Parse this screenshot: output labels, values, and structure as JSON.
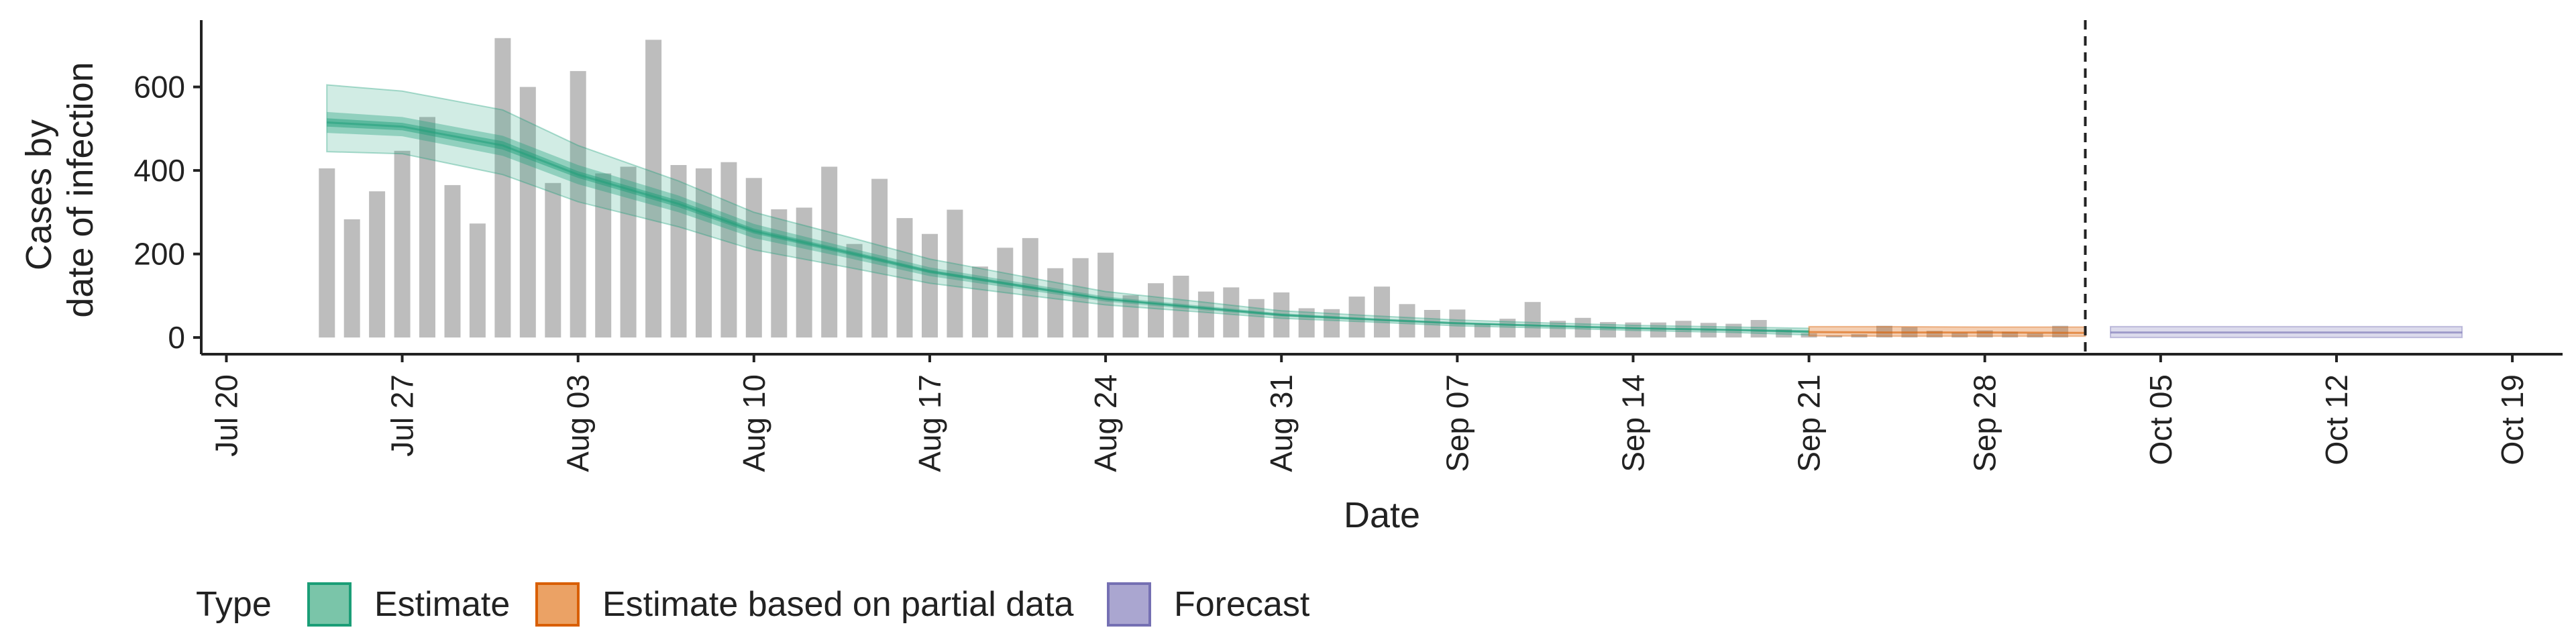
{
  "chart_data": {
    "type": "bar",
    "xlabel": "Date",
    "ylabel": [
      "Cases by",
      "date of infection"
    ],
    "x_ticks": [
      "Jul 20",
      "Jul 27",
      "Aug 03",
      "Aug 10",
      "Aug 17",
      "Aug 24",
      "Aug 31",
      "Sep 07",
      "Sep 14",
      "Sep 21",
      "Sep 28",
      "Oct 05",
      "Oct 12",
      "Oct 19"
    ],
    "y_ticks": [
      0,
      200,
      400,
      600
    ],
    "ylim": [
      -40,
      760
    ],
    "xlim": [
      "2020-07-19",
      "2020-10-21"
    ],
    "grid": false,
    "legend": {
      "title": "Type",
      "position": "bottom",
      "entries": [
        {
          "label": "Estimate",
          "fill": "#7ac5a9",
          "stroke": "#1b9e77"
        },
        {
          "label": "Estimate based on partial data",
          "fill": "#eba265",
          "stroke": "#d95f02"
        },
        {
          "label": "Forecast",
          "fill": "#aaa6d0",
          "stroke": "#7570b3"
        }
      ]
    },
    "observed_cases": {
      "start_date": "2020-07-24",
      "color": "#bdbdbd",
      "values": [
        405,
        283,
        350,
        447,
        528,
        365,
        273,
        717,
        600,
        370,
        638,
        393,
        409,
        713,
        413,
        405,
        420,
        382,
        307,
        311,
        409,
        224,
        380,
        286,
        248,
        306,
        170,
        215,
        238,
        166,
        190,
        203,
        101,
        130,
        148,
        110,
        120,
        92,
        108,
        70,
        68,
        98,
        122,
        80,
        66,
        67,
        33,
        45,
        85,
        40,
        47,
        37,
        36,
        36,
        40,
        35,
        33,
        42,
        20,
        10,
        5,
        8,
        28,
        25,
        16,
        12,
        17,
        14,
        10,
        28
      ]
    },
    "estimate_bands": {
      "dates": [
        "2020-07-24",
        "2020-07-27",
        "2020-07-31",
        "2020-08-03",
        "2020-08-07",
        "2020-08-10",
        "2020-08-14",
        "2020-08-17",
        "2020-08-21",
        "2020-08-24",
        "2020-08-28",
        "2020-08-31",
        "2020-09-04",
        "2020-09-07",
        "2020-09-11",
        "2020-09-14",
        "2020-09-18",
        "2020-09-21"
      ],
      "median": [
        515,
        505,
        460,
        390,
        320,
        255,
        200,
        158,
        120,
        92,
        70,
        54,
        42,
        34,
        27,
        22,
        18,
        14
      ],
      "lower_90": [
        445,
        440,
        390,
        325,
        265,
        210,
        165,
        130,
        100,
        78,
        60,
        46,
        36,
        28,
        22,
        17,
        12,
        6
      ],
      "upper_90": [
        605,
        590,
        545,
        460,
        375,
        300,
        237,
        188,
        143,
        110,
        84,
        64,
        51,
        42,
        34,
        29,
        25,
        22
      ],
      "lower_50": [
        490,
        482,
        435,
        367,
        300,
        238,
        187,
        147,
        112,
        86,
        65,
        50,
        39,
        31,
        25,
        20,
        15,
        10
      ],
      "upper_50": [
        540,
        528,
        483,
        413,
        340,
        272,
        212,
        168,
        128,
        98,
        75,
        58,
        45,
        37,
        30,
        25,
        21,
        18
      ],
      "lower_20": [
        505,
        496,
        450,
        382,
        312,
        249,
        195,
        154,
        117,
        90,
        68,
        52,
        41,
        33,
        26,
        21,
        17,
        12
      ],
      "upper_20": [
        525,
        514,
        470,
        398,
        328,
        261,
        205,
        162,
        123,
        94,
        72,
        56,
        43,
        35,
        28,
        23,
        19,
        16
      ]
    },
    "partial_estimate_bands": {
      "dates": [
        "2020-09-21",
        "2020-09-24",
        "2020-09-28",
        "2020-10-02"
      ],
      "median": [
        13,
        12,
        12,
        11
      ],
      "lower_90": [
        4,
        3,
        3,
        3
      ],
      "upper_90": [
        26,
        26,
        25,
        25
      ]
    },
    "forecast_bands": {
      "dates": [
        "2020-10-03",
        "2020-10-17"
      ],
      "median": [
        12,
        12
      ],
      "lower_90": [
        0,
        0
      ],
      "upper_90": [
        26,
        26
      ]
    },
    "vline_date": "2020-10-02"
  }
}
